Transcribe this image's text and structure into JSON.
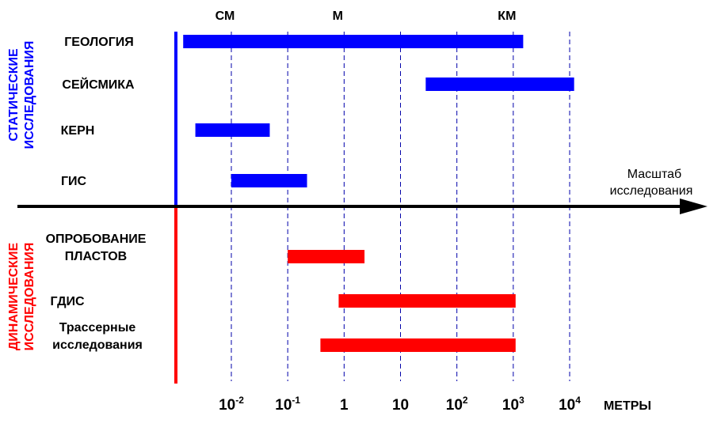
{
  "diagram": {
    "units_top": [
      {
        "label": "СМ",
        "at": 0.01
      },
      {
        "label": "М",
        "at": 1
      },
      {
        "label": "КМ",
        "at": 1000
      }
    ],
    "axis_title_lines": [
      "Масштаб",
      "исследования"
    ],
    "axis_unit": "МЕТРЫ",
    "ticks": [
      {
        "base": "10",
        "exp": "-2",
        "value": 0.01
      },
      {
        "base": "10",
        "exp": "-1",
        "value": 0.1
      },
      {
        "base": "1",
        "exp": "",
        "value": 1
      },
      {
        "base": "10",
        "exp": "",
        "value": 10
      },
      {
        "base": "10",
        "exp": "2",
        "value": 100
      },
      {
        "base": "10",
        "exp": "3",
        "value": 1000
      },
      {
        "base": "10",
        "exp": "4",
        "value": 10000
      }
    ],
    "sections": [
      {
        "title_lines": [
          "СТАТИЧЕСКИЕ",
          "ИССЛЕДОВАНИЯ"
        ],
        "color": "#0000ff",
        "items": [
          {
            "label_lines": [
              "ГЕОЛОГИЯ"
            ],
            "range": [
              0.0014,
              1500
            ]
          },
          {
            "label_lines": [
              "СЕЙСМИКА"
            ],
            "range": [
              28,
              12000
            ]
          },
          {
            "label_lines": [
              "КЕРН"
            ],
            "range": [
              0.0023,
              0.048
            ]
          },
          {
            "label_lines": [
              "ГИС"
            ],
            "range": [
              0.01,
              0.22
            ]
          }
        ]
      },
      {
        "title_lines": [
          "ДИНАМИЧЕСКИЕ",
          "ИССЛЕДОВАНИЯ"
        ],
        "color": "#ff0000",
        "items": [
          {
            "label_lines": [
              "ОПРОБОВАНИЕ",
              "ПЛАСТОВ"
            ],
            "range": [
              0.1,
              2.3
            ]
          },
          {
            "label_lines": [
              "ГДИС"
            ],
            "range": [
              0.8,
              1100
            ]
          },
          {
            "label_lines": [
              "Трассерные",
              "исследования"
            ],
            "range": [
              0.38,
              1100
            ]
          }
        ]
      }
    ]
  }
}
